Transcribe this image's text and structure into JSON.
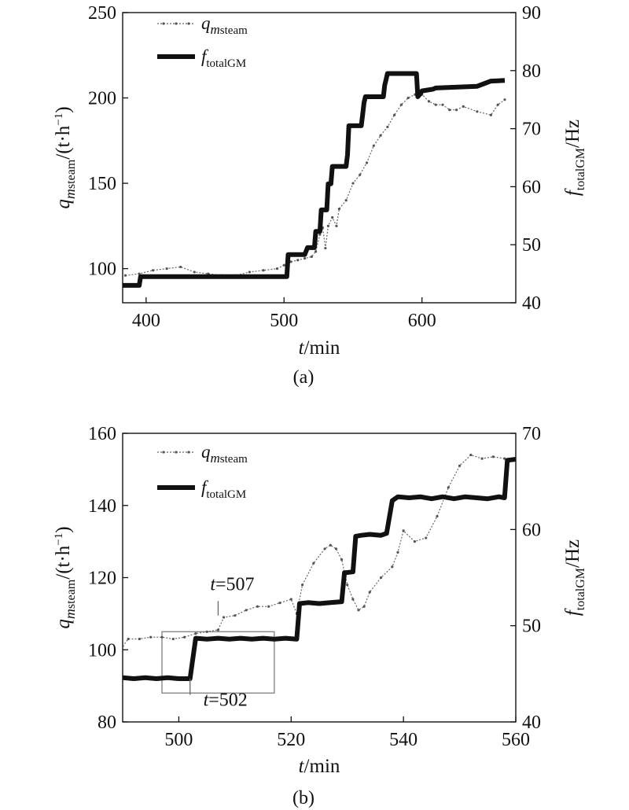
{
  "chart_data": [
    {
      "type": "line",
      "panel_label": "(a)",
      "xlabel": {
        "var": "t",
        "unit": "/min"
      },
      "ylabel_left": {
        "var": "q",
        "sub_italic": "m",
        "sub": "steam",
        "unit": "/(t·h",
        "sup": "−1",
        "close": ")"
      },
      "ylabel_right": {
        "var": "f",
        "sub": "totalGM",
        "unit": "/Hz"
      },
      "xlim": [
        383,
        668
      ],
      "ylim_left": [
        80,
        250
      ],
      "ylim_right": [
        40,
        90
      ],
      "x_ticks": [
        "400",
        "500",
        "600"
      ],
      "y_ticks_left": [
        "100",
        "150",
        "200",
        "250"
      ],
      "y_ticks_right": [
        "40",
        "50",
        "60",
        "70",
        "80",
        "90"
      ],
      "legend": [
        {
          "var": "q",
          "sub_italic": "m",
          "sub": "steam",
          "style": "thin-dotted"
        },
        {
          "var": "f",
          "sub": "totalGM",
          "style": "thick"
        }
      ],
      "series": [
        {
          "name": "qmsteam",
          "axis": "left",
          "x": [
            385,
            395,
            405,
            415,
            425,
            435,
            445,
            455,
            465,
            475,
            485,
            495,
            500,
            505,
            510,
            515,
            520,
            523,
            526,
            528,
            530,
            532,
            535,
            538,
            540,
            545,
            550,
            555,
            560,
            565,
            570,
            575,
            580,
            585,
            590,
            595,
            600,
            605,
            610,
            615,
            620,
            625,
            630,
            640,
            650,
            655,
            660
          ],
          "values": [
            96,
            97,
            99,
            100,
            101,
            98,
            97,
            96,
            96,
            98,
            99,
            100,
            102,
            104,
            105,
            106,
            107,
            110,
            120,
            124,
            112,
            125,
            130,
            125,
            135,
            140,
            150,
            155,
            162,
            172,
            178,
            183,
            190,
            196,
            200,
            202,
            202,
            198,
            196,
            196,
            193,
            193,
            195,
            192,
            190,
            196,
            199
          ]
        },
        {
          "name": "ftotalGM",
          "axis": "right",
          "x": [
            383,
            395,
            396,
            502,
            503,
            515,
            517,
            522,
            523,
            526,
            527,
            531,
            532,
            534,
            535,
            544,
            545,
            546,
            547,
            556,
            557,
            558,
            559,
            572,
            573,
            574,
            575,
            584,
            585,
            586,
            587,
            596,
            597,
            598,
            600,
            608,
            610,
            640,
            650,
            660
          ],
          "values": [
            43,
            43,
            44.5,
            44.5,
            48.3,
            48.3,
            49.5,
            49.5,
            52.3,
            52.3,
            56,
            56,
            60.5,
            60.5,
            63.5,
            63.5,
            63.5,
            65.5,
            70.5,
            70.5,
            72.5,
            74.5,
            75.5,
            75.5,
            77.5,
            78.5,
            79.5,
            79.5,
            79.5,
            79.5,
            79.5,
            79.5,
            75.5,
            75.8,
            76.5,
            76.8,
            77,
            77.3,
            78.2,
            78.3
          ]
        }
      ]
    },
    {
      "type": "line",
      "panel_label": "(b)",
      "xlabel": {
        "var": "t",
        "unit": "/min"
      },
      "ylabel_left": {
        "var": "q",
        "sub_italic": "m",
        "sub": "steam",
        "unit": "/(t·h",
        "sup": "−1",
        "close": ")"
      },
      "ylabel_right": {
        "var": "f",
        "sub": "totalGM",
        "unit": "/Hz"
      },
      "xlim": [
        490,
        560
      ],
      "ylim_left": [
        80,
        160
      ],
      "ylim_right": [
        40,
        70
      ],
      "x_ticks": [
        "500",
        "520",
        "540",
        "560"
      ],
      "y_ticks_left": [
        "80",
        "100",
        "120",
        "140",
        "160"
      ],
      "y_ticks_right": [
        "40",
        "50",
        "60",
        "70"
      ],
      "legend": [
        {
          "var": "q",
          "sub_italic": "m",
          "sub": "steam",
          "style": "thin-dotted"
        },
        {
          "var": "f",
          "sub": "totalGM",
          "style": "thick"
        }
      ],
      "annotations": [
        {
          "var": "t",
          "text": "=507",
          "at_x": 507
        },
        {
          "var": "t",
          "text": "=502",
          "at_x": 502
        }
      ],
      "highlight_box": {
        "x": [
          497,
          517
        ],
        "y": [
          88,
          105
        ]
      },
      "series": [
        {
          "name": "qmsteam",
          "axis": "left",
          "x": [
            490,
            491,
            493,
            495,
            497,
            499,
            501,
            503,
            505,
            507,
            508,
            510,
            512,
            514,
            516,
            518,
            520,
            521,
            522,
            524,
            526,
            527,
            528,
            529,
            530,
            531,
            532,
            533,
            534,
            536,
            538,
            539,
            540,
            542,
            544,
            546,
            548,
            550,
            552,
            554,
            556,
            558,
            560
          ],
          "values": [
            101,
            103,
            103,
            103.5,
            103.5,
            103,
            103.5,
            104.5,
            105,
            105.5,
            109,
            109.5,
            111,
            112,
            112,
            113,
            114,
            110,
            118,
            124,
            128,
            129,
            128,
            125,
            118,
            114,
            111,
            112,
            116,
            120,
            123,
            127,
            133,
            130,
            131,
            137,
            145,
            151,
            154,
            153,
            153.5,
            153,
            153
          ]
        },
        {
          "name": "ftotalGM",
          "axis": "right",
          "x": [
            490,
            492,
            494,
            496,
            498,
            500,
            502,
            503,
            505,
            507,
            509,
            511,
            513,
            515,
            517,
            519,
            521,
            521.5,
            523,
            525,
            527,
            529,
            529.5,
            531,
            531.5,
            532.5,
            534,
            536,
            537,
            538,
            539,
            541,
            543,
            545,
            547,
            549,
            551,
            553,
            555,
            557,
            558,
            558.5,
            560
          ],
          "values": [
            44.6,
            44.5,
            44.6,
            44.5,
            44.6,
            44.5,
            44.5,
            48.7,
            48.6,
            48.7,
            48.6,
            48.7,
            48.6,
            48.7,
            48.6,
            48.7,
            48.6,
            52.3,
            52.4,
            52.3,
            52.4,
            52.5,
            55.5,
            55.6,
            59.3,
            59.4,
            59.5,
            59.4,
            59.6,
            63.0,
            63.4,
            63.3,
            63.4,
            63.2,
            63.4,
            63.2,
            63.4,
            63.3,
            63.2,
            63.4,
            63.3,
            67.2,
            67.3
          ]
        }
      ]
    }
  ]
}
